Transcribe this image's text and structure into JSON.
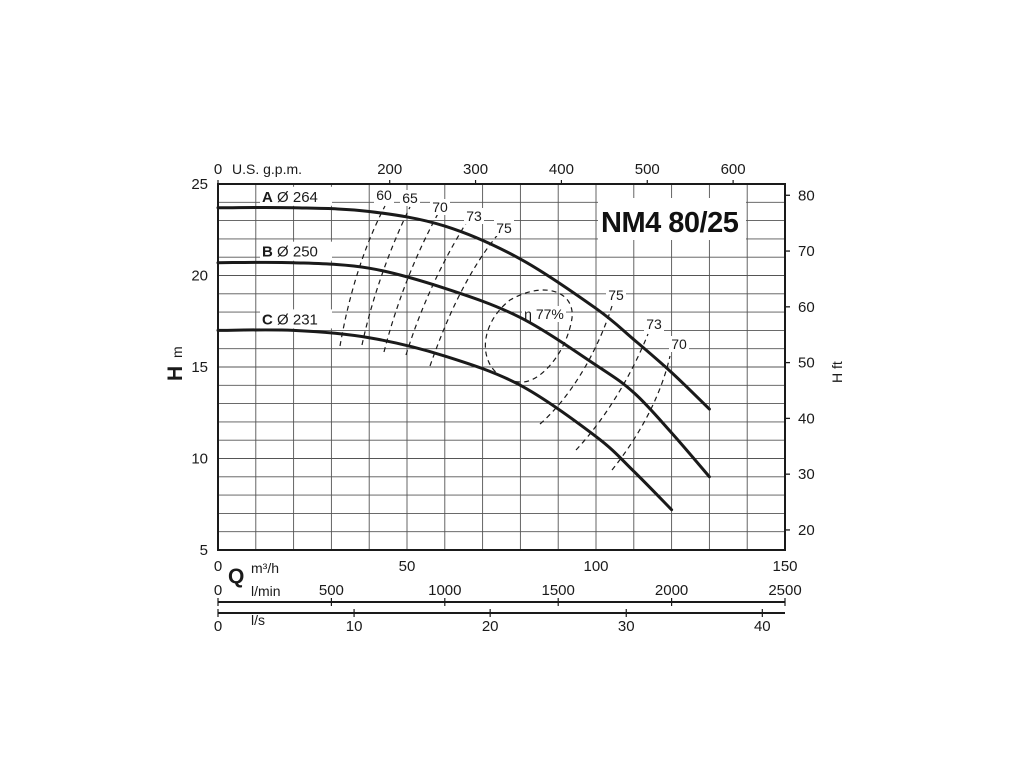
{
  "chart_data": {
    "type": "line",
    "title": "NM4 80/25",
    "axes": {
      "left": {
        "label": "H",
        "unit": "m",
        "ylim": [
          5,
          25
        ],
        "ticks": [
          5,
          10,
          15,
          20,
          25
        ]
      },
      "right": {
        "label": "H ft",
        "ticks": [
          20,
          30,
          40,
          50,
          60,
          70,
          80
        ]
      },
      "top": {
        "label": "U.S. g.p.m.",
        "ticks": [
          0,
          200,
          300,
          400,
          500,
          600
        ]
      },
      "bottom": [
        {
          "label": "Q",
          "unit": "m³/h",
          "xlim": [
            0,
            150
          ],
          "ticks": [
            0,
            50,
            100,
            150
          ]
        },
        {
          "unit": "l/min",
          "ticks": [
            0,
            500,
            1000,
            1500,
            2000,
            2500
          ]
        },
        {
          "unit": "l/s",
          "ticks": [
            0,
            10,
            20,
            30,
            40
          ]
        }
      ]
    },
    "grid": true,
    "series": [
      {
        "name": "A",
        "impeller": "Ø 264",
        "x": [
          0,
          20,
          40,
          60,
          80,
          100,
          110,
          120,
          130
        ],
        "y": [
          23.7,
          23.7,
          23.5,
          22.7,
          20.9,
          18.2,
          16.5,
          14.7,
          12.7
        ]
      },
      {
        "name": "B",
        "impeller": "Ø 250",
        "x": [
          0,
          20,
          40,
          60,
          80,
          100,
          110,
          120,
          130
        ],
        "y": [
          20.7,
          20.7,
          20.4,
          19.3,
          17.7,
          15.1,
          13.6,
          11.4,
          9.0
        ]
      },
      {
        "name": "C",
        "impeller": "Ø 231",
        "x": [
          0,
          20,
          40,
          60,
          80,
          100,
          110,
          120
        ],
        "y": [
          17.0,
          17.0,
          16.6,
          15.6,
          14.0,
          11.2,
          9.3,
          7.2
        ]
      }
    ],
    "efficiency_labels": [
      "60",
      "65",
      "70",
      "73",
      "75",
      "η 77%",
      "75",
      "73",
      "70"
    ]
  }
}
